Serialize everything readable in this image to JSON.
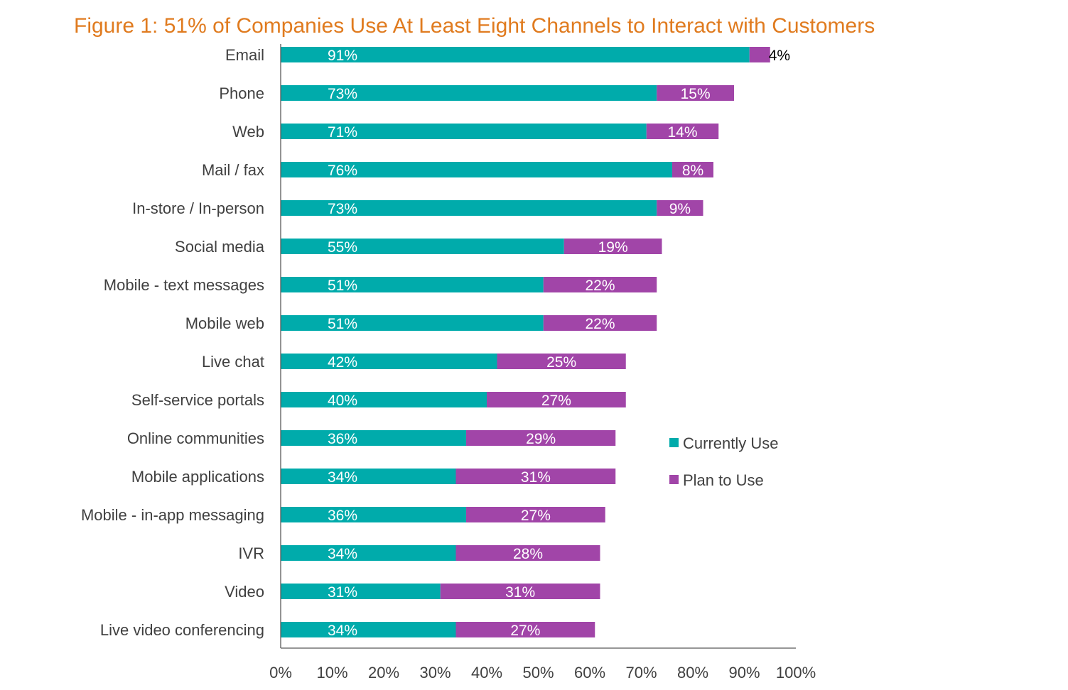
{
  "chart_data": {
    "type": "bar",
    "orientation": "horizontal",
    "stacked": true,
    "title": "Figure 1: 51% of Companies Use At Least Eight Channels to Interact with Customers",
    "xlabel": "",
    "ylabel": "",
    "xlim": [
      0,
      100
    ],
    "x_ticks": [
      "0%",
      "10%",
      "20%",
      "30%",
      "40%",
      "50%",
      "60%",
      "70%",
      "80%",
      "90%",
      "100%"
    ],
    "grid": false,
    "legend_position": "right",
    "categories": [
      "Email",
      "Phone",
      "Web",
      "Mail / fax",
      "In-store / In-person",
      "Social media",
      "Mobile - text messages",
      "Mobile web",
      "Live chat",
      "Self-service portals",
      "Online communities",
      "Mobile applications",
      "Mobile - in-app messaging",
      "IVR",
      "Video",
      "Live video conferencing"
    ],
    "series": [
      {
        "name": "Currently Use",
        "color": "#00abab",
        "values": [
          91,
          73,
          71,
          76,
          73,
          55,
          51,
          51,
          42,
          40,
          36,
          34,
          36,
          34,
          31,
          34
        ],
        "labels": [
          "91%",
          "73%",
          "71%",
          "76%",
          "73%",
          "55%",
          "51%",
          "51%",
          "42%",
          "40%",
          "36%",
          "34%",
          "36%",
          "34%",
          "31%",
          "34%"
        ]
      },
      {
        "name": "Plan to Use",
        "color": "#a145a8",
        "values": [
          4,
          15,
          14,
          8,
          9,
          19,
          22,
          22,
          25,
          27,
          29,
          31,
          27,
          28,
          31,
          27
        ],
        "labels": [
          "4%",
          "15%",
          "14%",
          "8%",
          "9%",
          "19%",
          "22%",
          "22%",
          "25%",
          "27%",
          "29%",
          "31%",
          "27%",
          "28%",
          "31%",
          "27%"
        ]
      }
    ]
  }
}
